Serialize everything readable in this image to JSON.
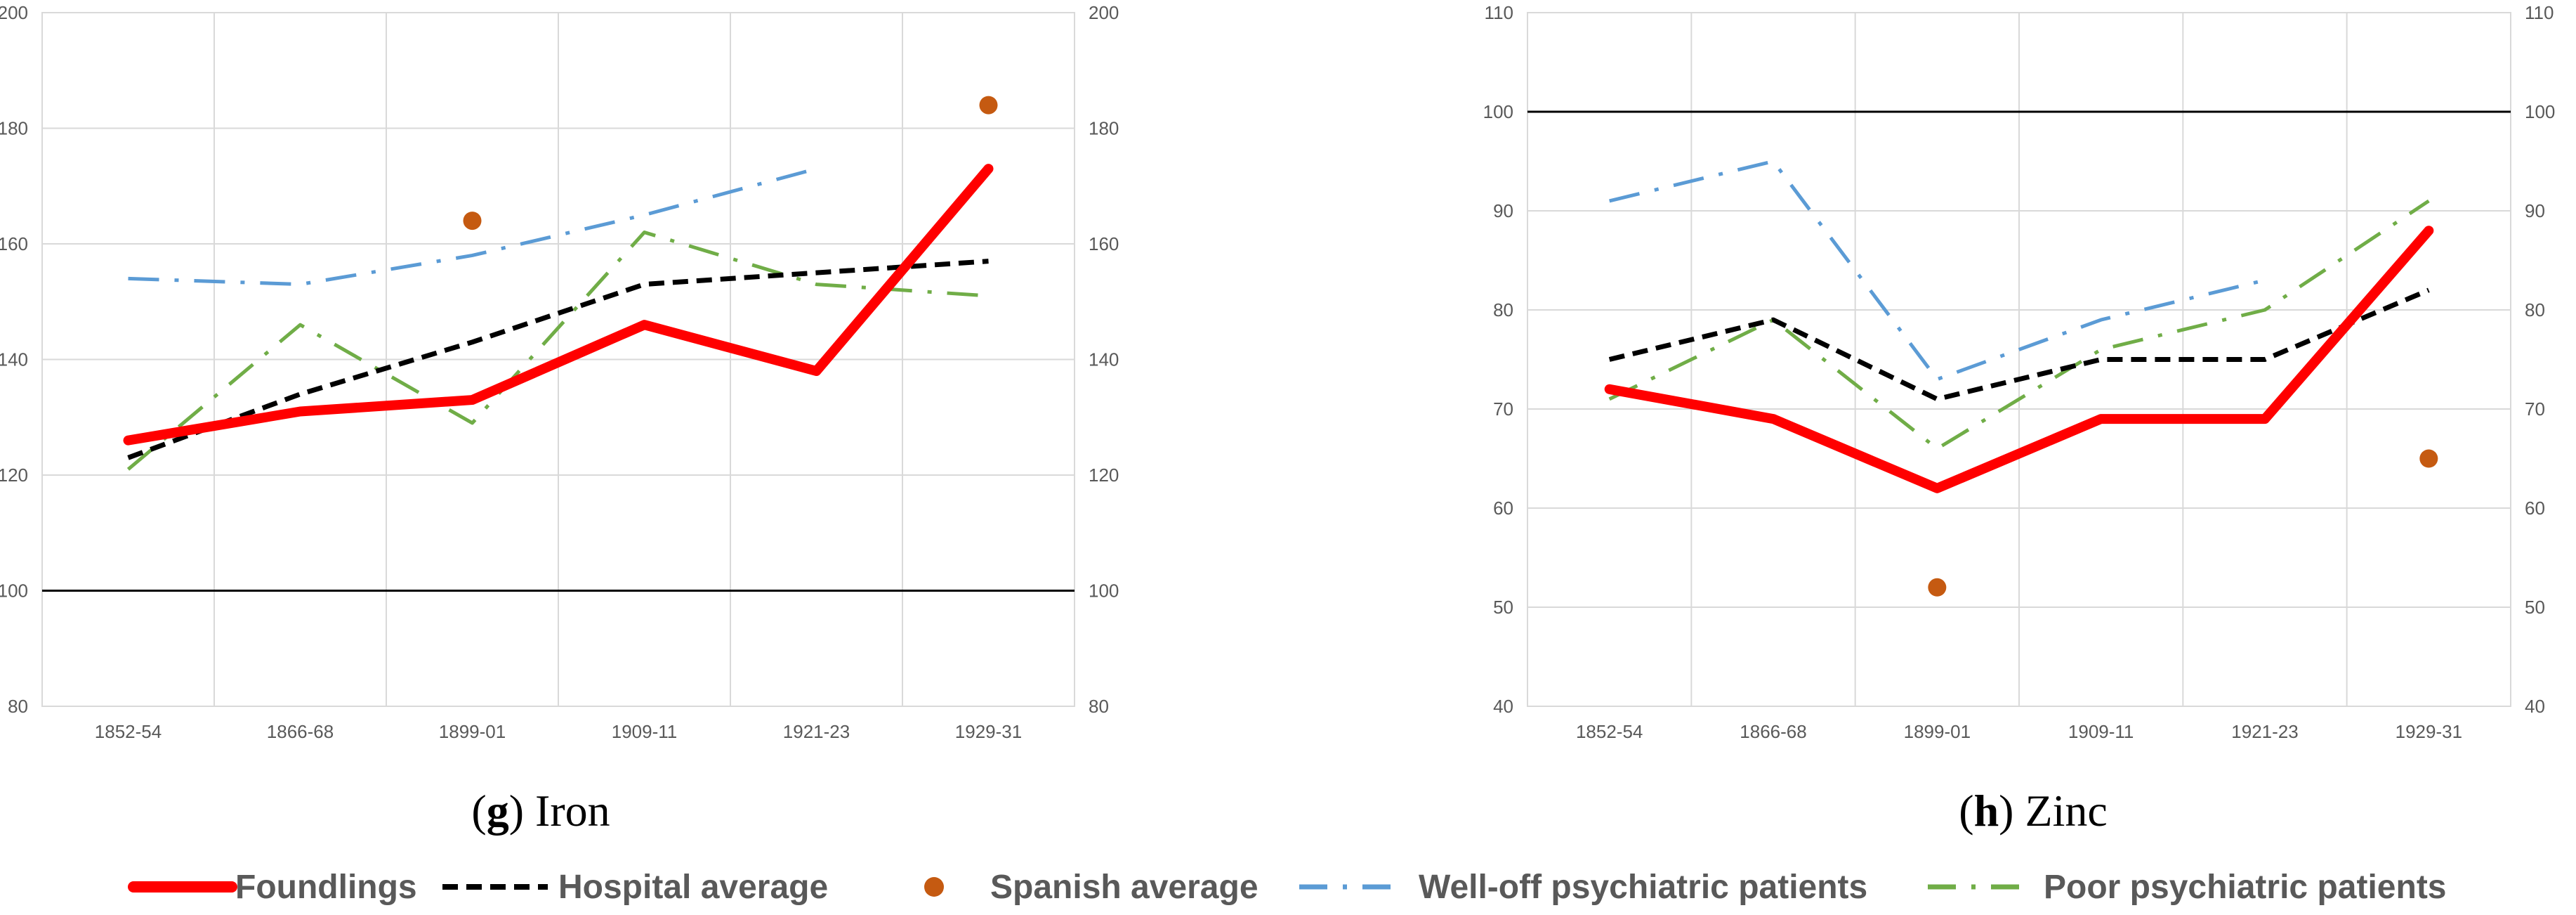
{
  "chart_data": [
    {
      "type": "line",
      "id": "iron",
      "caption_letter": "g",
      "caption_text": "Iron",
      "categories": [
        "1852-54",
        "1866-68",
        "1899-01",
        "1909-11",
        "1921-23",
        "1929-31"
      ],
      "ylim": [
        80,
        200
      ],
      "yticks": [
        80,
        100,
        120,
        140,
        160,
        180,
        200
      ],
      "reference_line": 100,
      "series": [
        {
          "key": "foundlings",
          "values": [
            126,
            131,
            133,
            146,
            138,
            173
          ]
        },
        {
          "key": "hospital",
          "values": [
            123,
            134,
            143,
            153,
            155,
            157
          ]
        },
        {
          "key": "spanish",
          "values": [
            null,
            null,
            164,
            null,
            null,
            184
          ]
        },
        {
          "key": "welloff",
          "values": [
            154,
            153,
            158,
            165,
            173,
            null
          ]
        },
        {
          "key": "poor",
          "values": [
            121,
            146,
            129,
            162,
            153,
            151
          ]
        }
      ]
    },
    {
      "type": "line",
      "id": "zinc",
      "caption_letter": "h",
      "caption_text": "Zinc",
      "categories": [
        "1852-54",
        "1866-68",
        "1899-01",
        "1909-11",
        "1921-23",
        "1929-31"
      ],
      "ylim": [
        40,
        110
      ],
      "yticks": [
        40,
        50,
        60,
        70,
        80,
        90,
        100,
        110
      ],
      "reference_line": 100,
      "series": [
        {
          "key": "foundlings",
          "values": [
            72,
            69,
            62,
            69,
            69,
            88
          ]
        },
        {
          "key": "hospital",
          "values": [
            75,
            79,
            71,
            75,
            75,
            82
          ]
        },
        {
          "key": "spanish",
          "values": [
            null,
            null,
            52,
            null,
            null,
            65
          ]
        },
        {
          "key": "welloff",
          "values": [
            91,
            95,
            73,
            79,
            83,
            null
          ]
        },
        {
          "key": "poor",
          "values": [
            71,
            79,
            66,
            76,
            80,
            91
          ]
        }
      ]
    }
  ],
  "legend": [
    {
      "key": "foundlings",
      "label": "Foundlings",
      "color": "#ff0000",
      "style": "solid"
    },
    {
      "key": "hospital",
      "label": "Hospital average",
      "color": "#000000",
      "style": "dash"
    },
    {
      "key": "spanish",
      "label": "Spanish average",
      "color": "#c55a11",
      "style": "dot"
    },
    {
      "key": "welloff",
      "label": "Well-off psychiatric patients",
      "color": "#5b9bd5",
      "style": "dashdot"
    },
    {
      "key": "poor",
      "label": "Poor psychiatric patients",
      "color": "#70ad47",
      "style": "dashdot"
    }
  ]
}
